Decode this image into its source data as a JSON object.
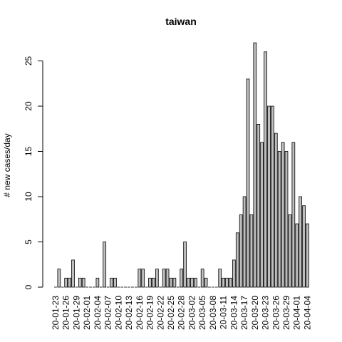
{
  "chart_data": {
    "type": "bar",
    "title": "taiwan",
    "ylabel": "# new cases/day",
    "xlabel": "",
    "ylim": [
      0,
      27
    ],
    "yticks": [
      0,
      5,
      10,
      15,
      20,
      25
    ],
    "categories": [
      "20-01-23",
      "20-01-24",
      "20-01-25",
      "20-01-26",
      "20-01-27",
      "20-01-28",
      "20-01-29",
      "20-01-30",
      "20-01-31",
      "20-02-01",
      "20-02-02",
      "20-02-03",
      "20-02-04",
      "20-02-05",
      "20-02-06",
      "20-02-07",
      "20-02-08",
      "20-02-09",
      "20-02-10",
      "20-02-11",
      "20-02-12",
      "20-02-13",
      "20-02-14",
      "20-02-15",
      "20-02-16",
      "20-02-17",
      "20-02-18",
      "20-02-19",
      "20-02-20",
      "20-02-21",
      "20-02-22",
      "20-02-23",
      "20-02-24",
      "20-02-25",
      "20-02-26",
      "20-02-27",
      "20-02-28",
      "20-02-29",
      "20-03-01",
      "20-03-02",
      "20-03-03",
      "20-03-04",
      "20-03-05",
      "20-03-06",
      "20-03-07",
      "20-03-08",
      "20-03-09",
      "20-03-10",
      "20-03-11",
      "20-03-12",
      "20-03-13",
      "20-03-14",
      "20-03-15",
      "20-03-16",
      "20-03-17",
      "20-03-18",
      "20-03-19",
      "20-03-20",
      "20-03-21",
      "20-03-22",
      "20-03-23",
      "20-03-24",
      "20-03-25",
      "20-03-26",
      "20-03-27",
      "20-03-28",
      "20-03-29",
      "20-03-30",
      "20-03-31",
      "20-04-01",
      "20-04-02",
      "20-04-03",
      "20-04-04"
    ],
    "values": [
      0,
      2,
      0,
      1,
      1,
      3,
      0,
      1,
      1,
      0,
      0,
      0,
      1,
      0,
      5,
      0,
      1,
      1,
      0,
      0,
      0,
      0,
      0,
      0,
      2,
      2,
      0,
      1,
      1,
      2,
      0,
      2,
      2,
      1,
      1,
      0,
      2,
      5,
      1,
      1,
      1,
      0,
      2,
      1,
      0,
      0,
      0,
      2,
      1,
      1,
      1,
      3,
      6,
      8,
      10,
      23,
      8,
      27,
      18,
      16,
      26,
      20,
      20,
      17,
      15,
      16,
      15,
      8,
      16,
      7,
      10,
      9,
      7
    ],
    "labeled_tick_every": 3
  }
}
